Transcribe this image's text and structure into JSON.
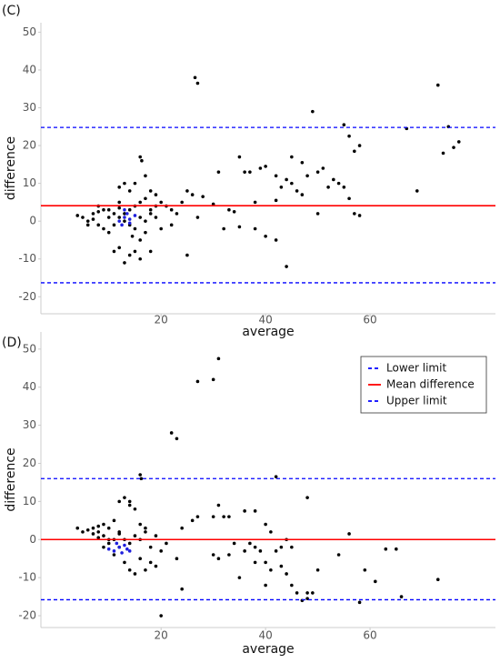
{
  "chart_data": [
    {
      "type": "scatter",
      "title": "(C)",
      "xlabel": "average",
      "ylabel": "difference",
      "xlim": [
        -3,
        84
      ],
      "ylim": [
        -24.5,
        52.5
      ],
      "xticks": [
        20,
        40,
        60
      ],
      "yticks": [
        -20,
        -10,
        0,
        10,
        20,
        30,
        40,
        50
      ],
      "series": [
        {
          "color": "#000000",
          "x": [
            26.5,
            27,
            73,
            75,
            77,
            76,
            74,
            69,
            67,
            49,
            55,
            56,
            57,
            58,
            58,
            44,
            42,
            40,
            45,
            47,
            35,
            36,
            31,
            37,
            39,
            40,
            42,
            44,
            43,
            45,
            46,
            47,
            48,
            50,
            51,
            52,
            53,
            54,
            55,
            56,
            57,
            50,
            42,
            38,
            33,
            34,
            32,
            35,
            38,
            30,
            25,
            26,
            28,
            24,
            22,
            21,
            25,
            16,
            16.3,
            17,
            18,
            19,
            15,
            13,
            12,
            14,
            16,
            17,
            18,
            19,
            20,
            18,
            16,
            15,
            14,
            13,
            12,
            11,
            10,
            8,
            6,
            5,
            4,
            7,
            8,
            9,
            10,
            11,
            12,
            13,
            14,
            15,
            16,
            17,
            18,
            19,
            20,
            9,
            6,
            7,
            10,
            11,
            14,
            15,
            13,
            12,
            22,
            23,
            12,
            8,
            27,
            14.5,
            16,
            17
          ],
          "y": [
            38,
            36.5,
            36,
            25,
            21,
            19.5,
            18,
            8,
            24.5,
            29,
            25.5,
            22.5,
            18.5,
            20,
            1.5,
            -12,
            -5,
            -4,
            17,
            15.5,
            17,
            13,
            13,
            13,
            14,
            14.5,
            12,
            11,
            9,
            10,
            8,
            7,
            12,
            13,
            14,
            9,
            11,
            10,
            9,
            6,
            2,
            2,
            5.5,
            5,
            3,
            2.5,
            -2,
            -1.5,
            -2,
            4.5,
            8,
            7,
            6.5,
            5,
            3,
            4,
            -9,
            17,
            16,
            12,
            8,
            7,
            10,
            10,
            9,
            8,
            5,
            6,
            3,
            4,
            5,
            -8,
            -10,
            -8,
            -9,
            -11,
            -7,
            -8,
            -3,
            -1,
            0,
            1,
            1.5,
            2,
            2.5,
            3,
            3,
            2,
            1,
            0,
            -1,
            -2,
            1,
            0,
            2,
            1,
            -2,
            -2,
            -1,
            0.5,
            1,
            -1,
            3,
            4,
            2,
            3.5,
            -1,
            2,
            5,
            4,
            1,
            -4,
            -5,
            -3
          ]
        },
        {
          "color": "#1f1fdd",
          "x": [
            13,
            14,
            12,
            13.5,
            14,
            15,
            12.5,
            13
          ],
          "y": [
            1,
            0.5,
            0,
            2,
            -0.5,
            1.5,
            -1,
            3
          ]
        }
      ],
      "lines": [
        {
          "value": -16.3,
          "color": "#0000ff",
          "style": "dashed"
        },
        {
          "value": 4.1,
          "color": "#ff0000",
          "style": "solid"
        },
        {
          "value": 24.8,
          "color": "#0000ff",
          "style": "dashed"
        }
      ]
    },
    {
      "type": "scatter",
      "title": "(D)",
      "xlabel": "average",
      "ylabel": "difference",
      "xlim": [
        -3,
        84
      ],
      "ylim": [
        -23.1,
        54.5
      ],
      "xticks": [
        20,
        40,
        60
      ],
      "yticks": [
        -20,
        -10,
        0,
        10,
        20,
        30,
        40,
        50
      ],
      "legend": "upper right",
      "series": [
        {
          "color": "#000000",
          "x": [
            27,
            30,
            31,
            22,
            23,
            16,
            16.2,
            42,
            48,
            36,
            38,
            31,
            32,
            33,
            30,
            27,
            26,
            24,
            23,
            24,
            20,
            19,
            21,
            20,
            18,
            17,
            16,
            15,
            14,
            13,
            12,
            11,
            10,
            9,
            8,
            7,
            6,
            5,
            4,
            7,
            8,
            9,
            10,
            11,
            12,
            13,
            14,
            15,
            16,
            17,
            18,
            19,
            10,
            9,
            8,
            11,
            12,
            13,
            14,
            15,
            16,
            17,
            14,
            12,
            30,
            31,
            33,
            35,
            38,
            39,
            40,
            41,
            42,
            43,
            44,
            45,
            46,
            47,
            48,
            49,
            45,
            44,
            43,
            40,
            38,
            36,
            40,
            41,
            48,
            56,
            58,
            59,
            61,
            63,
            65,
            66,
            73,
            54,
            50,
            37,
            34
          ],
          "y": [
            41.5,
            42,
            47.5,
            28,
            26.5,
            17,
            16,
            16.5,
            11,
            7.5,
            7.5,
            9,
            6,
            6,
            6,
            6,
            5,
            3,
            -5,
            -13,
            -20,
            -7,
            -1,
            -3,
            -6,
            -8,
            -5,
            -9,
            -8,
            -6,
            -2,
            -4,
            0,
            1,
            2,
            3,
            2.5,
            2,
            3,
            1.5,
            3.5,
            4,
            3,
            5,
            2,
            0,
            -1,
            1,
            0,
            2,
            -2,
            1,
            -1,
            -2,
            0.5,
            0,
            1.5,
            11,
            9,
            8,
            4,
            3,
            10,
            10,
            -4,
            -5,
            -4,
            -10,
            -2,
            -3,
            -6,
            -8,
            -3,
            -7,
            -9,
            -12,
            -14,
            -16,
            -15.5,
            -14,
            -2,
            0,
            -2,
            -12,
            -6,
            -3,
            4,
            2,
            -14,
            1.5,
            -16.5,
            -8,
            -11,
            -2.5,
            -2.5,
            -15,
            -10.5,
            -4,
            -8,
            -1,
            -1
          ]
        },
        {
          "color": "#1f1fdd",
          "x": [
            10,
            11,
            12,
            13,
            12.5,
            13.5,
            11.5,
            14
          ],
          "y": [
            -2.5,
            -3,
            -2,
            -1.5,
            -3.5,
            -2.5,
            -1,
            -3
          ]
        }
      ],
      "lines": [
        {
          "name": "Lower limit",
          "value": -15.8,
          "color": "#0000ff",
          "style": "dashed"
        },
        {
          "name": "Mean difference",
          "value": 0,
          "color": "#ff0000",
          "style": "solid"
        },
        {
          "name": "Upper limit",
          "value": 16.0,
          "color": "#0000ff",
          "style": "dashed"
        }
      ]
    }
  ]
}
